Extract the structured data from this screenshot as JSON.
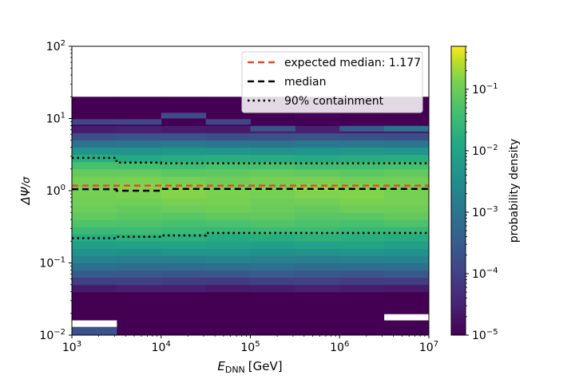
{
  "chart_data": {
    "type": "heatmap",
    "title": "",
    "xlabel": {
      "base": "E",
      "sub": "DNN",
      "unit": "[GeV]"
    },
    "ylabel": {
      "main": "ΔΨ",
      "suffix": "/σ"
    },
    "xscale": "log",
    "yscale": "log",
    "xlim": [
      1000,
      10000000
    ],
    "ylim": [
      0.01,
      100
    ],
    "x_tick_labels": [
      {
        "value": 1000,
        "base": "10",
        "exp": "3"
      },
      {
        "value": 10000,
        "base": "10",
        "exp": "4"
      },
      {
        "value": 100000,
        "base": "10",
        "exp": "5"
      },
      {
        "value": 1000000,
        "base": "10",
        "exp": "6"
      },
      {
        "value": 10000000,
        "base": "10",
        "exp": "7"
      }
    ],
    "y_tick_labels": [
      {
        "value": 0.01,
        "base": "10",
        "exp": "−2"
      },
      {
        "value": 0.1,
        "base": "10",
        "exp": "−1"
      },
      {
        "value": 1,
        "base": "10",
        "exp": "0"
      },
      {
        "value": 10,
        "base": "10",
        "exp": "1"
      },
      {
        "value": 100,
        "base": "10",
        "exp": "2"
      }
    ],
    "x_bin_edges": [
      1000,
      3162,
      10000,
      31623,
      100000,
      316228,
      1000000,
      3162278,
      10000000
    ],
    "y_bins": {
      "min": 0.01,
      "max": 20,
      "count": 33
    },
    "cells": [
      {
        "x_bin": 0,
        "from": 0.01,
        "to": 0.013,
        "density": 0.0002
      },
      {
        "x_bin": 0,
        "from": 0.013,
        "to": 0.016,
        "density": null
      },
      {
        "x_bin": 7,
        "from": 0.016,
        "to": 0.0195,
        "density": null
      },
      {
        "x_bin": 5,
        "from": 10.0,
        "to": 12.0,
        "density": 1.2e-05
      },
      {
        "x_bin": 2,
        "from": 10.0,
        "to": 12.0,
        "density": 0.00015
      },
      {
        "x_bin": 0,
        "from": 8.2,
        "to": 9.8,
        "density": 0.00012
      },
      {
        "x_bin": 1,
        "from": 8.2,
        "to": 9.8,
        "density": 0.00012
      },
      {
        "x_bin": 3,
        "from": 8.2,
        "to": 9.8,
        "density": 0.00012
      },
      {
        "x_bin": 4,
        "from": 6.6,
        "to": 7.9,
        "density": 0.0002
      },
      {
        "x_bin": 6,
        "from": 6.6,
        "to": 7.9,
        "density": 0.0003
      },
      {
        "x_bin": 7,
        "from": 6.6,
        "to": 7.9,
        "density": 0.0009
      }
    ],
    "lines": {
      "expected_median": {
        "value": 1.177,
        "color": "#e24a33",
        "style": "dashed"
      },
      "median": {
        "x": [
          1000,
          3162,
          3162,
          10000,
          10000,
          10000000
        ],
        "y": [
          1.05,
          1.05,
          1.0,
          1.0,
          1.06,
          1.06
        ],
        "color": "#000000",
        "style": "dashed"
      },
      "containment_upper": {
        "x": [
          1000,
          3162,
          3162,
          10000,
          10000,
          10000000
        ],
        "y": [
          2.85,
          2.85,
          2.45,
          2.45,
          2.4,
          2.4
        ],
        "color": "#000000",
        "style": "dotted"
      },
      "containment_lower": {
        "x": [
          1000,
          3162,
          3162,
          10000,
          10000,
          31623,
          31623,
          10000000
        ],
        "y": [
          0.22,
          0.22,
          0.23,
          0.23,
          0.24,
          0.24,
          0.26,
          0.26
        ],
        "color": "#000000",
        "style": "dotted"
      }
    },
    "legend": {
      "placement": "top-right",
      "entries": [
        {
          "label": "expected median: 1.177",
          "color": "#e24a33",
          "style": "dashed"
        },
        {
          "label": "median",
          "color": "#000000",
          "style": "dashed"
        },
        {
          "label": "90% containment",
          "color": "#000000",
          "style": "dotted"
        }
      ]
    },
    "colorbar": {
      "label": "probability density",
      "scale": "log",
      "range": [
        1e-05,
        0.5
      ],
      "colormap": "viridis",
      "tick_labels": [
        {
          "value": 1e-05,
          "base": "10",
          "exp": "−5"
        },
        {
          "value": 0.0001,
          "base": "10",
          "exp": "−4"
        },
        {
          "value": 0.001,
          "base": "10",
          "exp": "−3"
        },
        {
          "value": 0.01,
          "base": "10",
          "exp": "−2"
        },
        {
          "value": 0.1,
          "base": "10",
          "exp": "−1"
        }
      ]
    }
  }
}
